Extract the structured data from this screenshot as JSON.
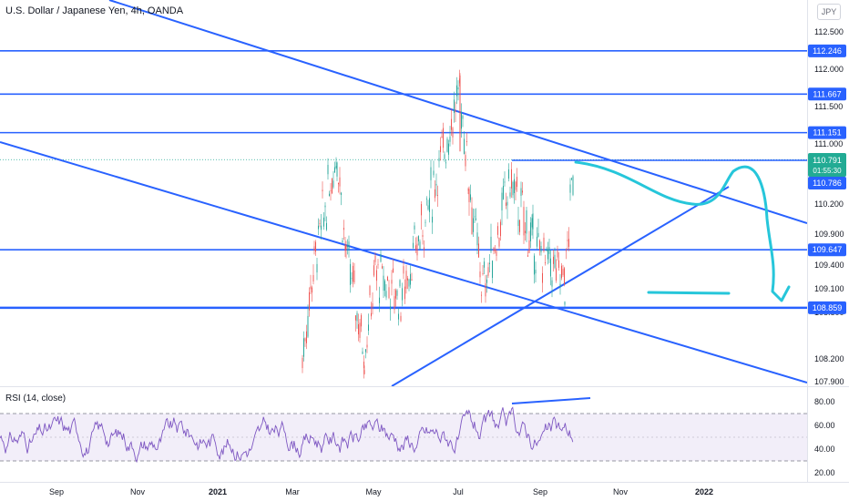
{
  "header": {
    "title": "U.S. Dollar / Japanese Yen, 4h, OANDA",
    "currency": "JPY"
  },
  "rsi": {
    "label": "RSI (14, close)"
  },
  "colors": {
    "up": "#26a69a",
    "down": "#ef5350",
    "line": "#2962ff",
    "cyan": "#26c6da",
    "rsi": "#7e57c2",
    "rsi_fill": "#ede7f6",
    "price_tag": "#2962ff",
    "last_price": "#22ab94"
  },
  "chart_data": [
    {
      "type": "candlestick",
      "title": "U.S. Dollar / Japanese Yen, 4h, OANDA",
      "y_ticks": [
        "112.500",
        "112.000",
        "111.500",
        "111.000",
        "110.200",
        "109.900",
        "109.400",
        "109.100",
        "108.800",
        "108.200",
        "107.900"
      ],
      "x_ticks": [
        "Sep",
        "Nov",
        "2021",
        "Mar",
        "May",
        "Jul",
        "Sep",
        "Nov",
        "2022"
      ],
      "price_levels": [
        {
          "value": 112.246,
          "label": "112.246"
        },
        {
          "value": 111.667,
          "label": "111.667"
        },
        {
          "value": 111.151,
          "label": "111.151"
        },
        {
          "value": 109.647,
          "label": "109.647"
        },
        {
          "value": 108.859,
          "label": "108.859"
        }
      ],
      "last_price": {
        "label": "110.791",
        "countdown": "01:55:30"
      },
      "prev_close": {
        "label": "110.786"
      },
      "price_path": [
        [
          "Mar",
          108.2
        ],
        [
          "Mar",
          109.5
        ],
        [
          "Apr",
          110.9
        ],
        [
          "Apr",
          109.6
        ],
        [
          "May",
          108.3
        ],
        [
          "May",
          109.3
        ],
        [
          "Jun",
          109.0
        ],
        [
          "Jun",
          110.2
        ],
        [
          "Jul",
          111.7
        ],
        [
          "Jul",
          110.5
        ],
        [
          "Aug",
          109.1
        ],
        [
          "Aug",
          110.5
        ],
        [
          "Sep",
          109.7
        ],
        [
          "Sep",
          109.2
        ],
        [
          "Sep",
          110.79
        ]
      ]
    },
    {
      "type": "line",
      "title": "RSI (14, close)",
      "y_ticks": [
        "80.00",
        "60.00",
        "40.00",
        "20.00"
      ],
      "bands": [
        70,
        30
      ],
      "midline": 50
    }
  ]
}
